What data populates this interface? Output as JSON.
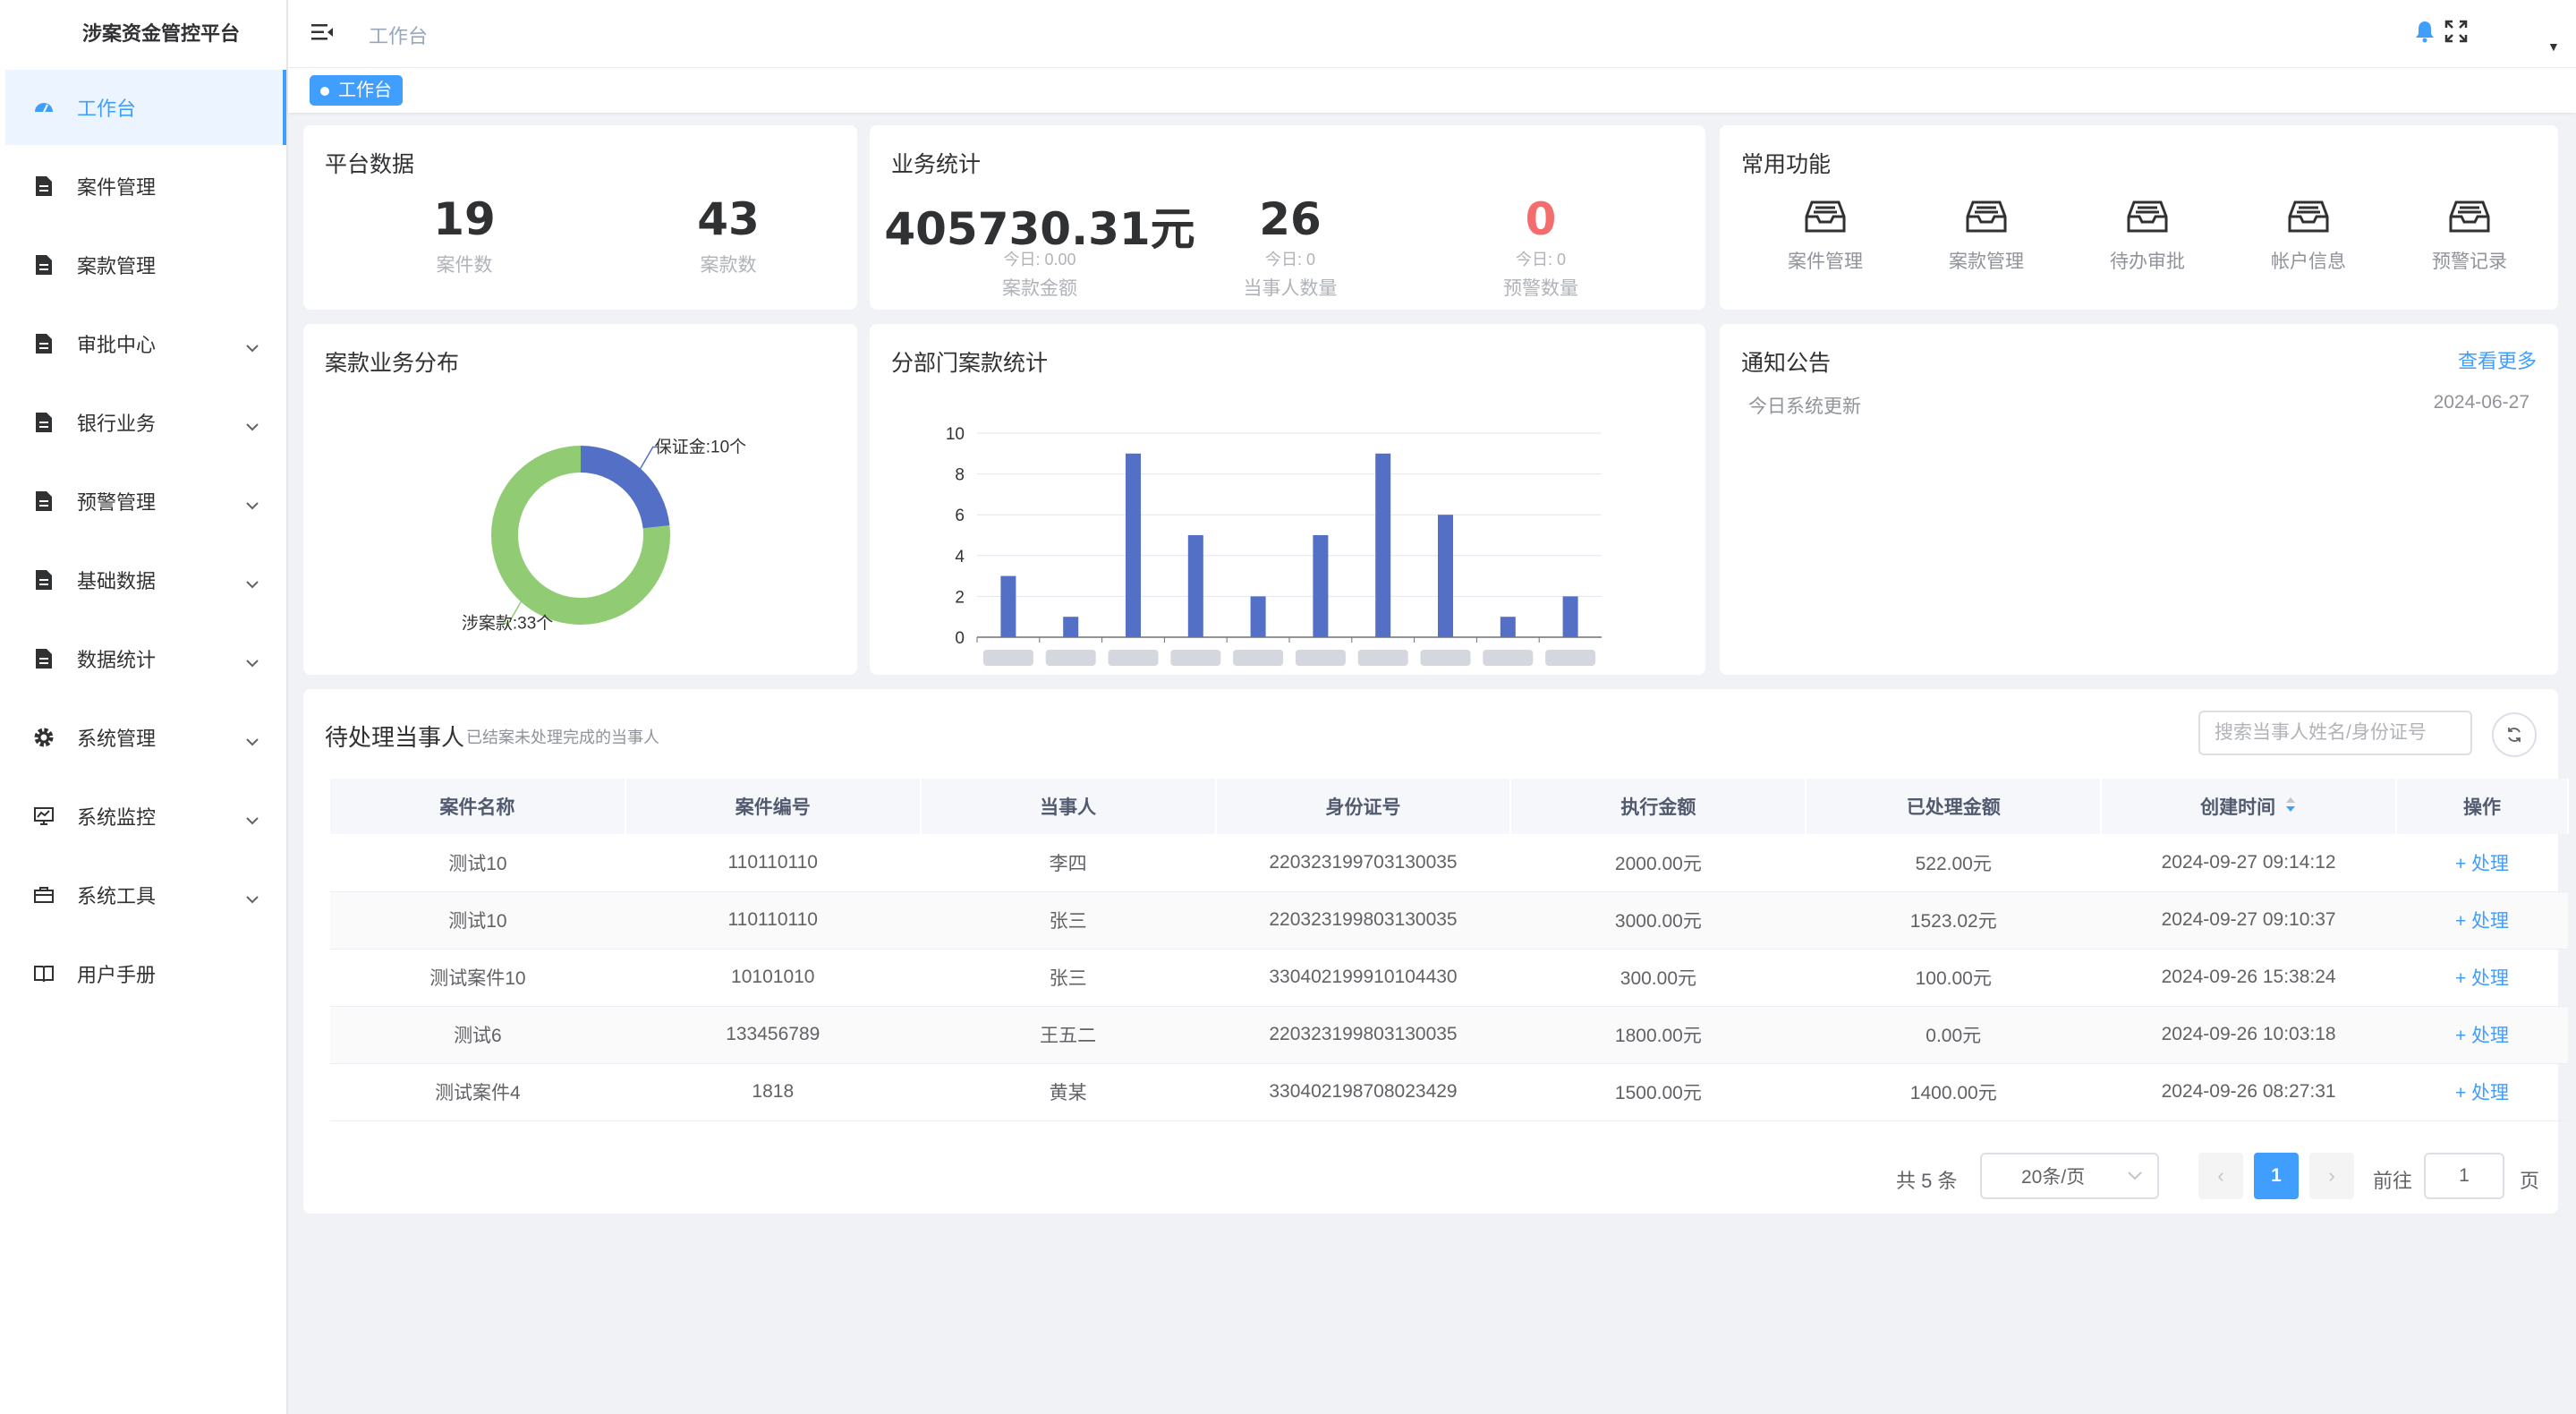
{
  "app": {
    "title": "涉案资金管控平台"
  },
  "sidebar": {
    "items": [
      {
        "label": "工作台",
        "icon": "dashboard-icon",
        "active": true,
        "expandable": false
      },
      {
        "label": "案件管理",
        "icon": "document-icon",
        "expandable": false
      },
      {
        "label": "案款管理",
        "icon": "document-icon",
        "expandable": false
      },
      {
        "label": "审批中心",
        "icon": "document-icon",
        "expandable": true
      },
      {
        "label": "银行业务",
        "icon": "document-icon",
        "expandable": true
      },
      {
        "label": "预警管理",
        "icon": "document-icon",
        "expandable": true
      },
      {
        "label": "基础数据",
        "icon": "document-icon",
        "expandable": true
      },
      {
        "label": "数据统计",
        "icon": "document-icon",
        "expandable": true
      },
      {
        "label": "系统管理",
        "icon": "gear-icon",
        "expandable": true
      },
      {
        "label": "系统监控",
        "icon": "monitor-icon",
        "expandable": true
      },
      {
        "label": "系统工具",
        "icon": "toolbox-icon",
        "expandable": true
      },
      {
        "label": "用户手册",
        "icon": "book-icon",
        "expandable": false
      }
    ]
  },
  "header": {
    "breadcrumb": "工作台"
  },
  "tags": {
    "active": "工作台"
  },
  "platform": {
    "title": "平台数据",
    "stats": [
      {
        "value": "19",
        "label": "案件数"
      },
      {
        "value": "43",
        "label": "案款数"
      }
    ]
  },
  "business": {
    "title": "业务统计",
    "stats": [
      {
        "value": "405730.31元",
        "sub": "今日: 0.00",
        "label": "案款金额",
        "color": "#303133"
      },
      {
        "value": "26",
        "sub": "今日: 0",
        "label": "当事人数量",
        "color": "#303133"
      },
      {
        "value": "0",
        "sub": "今日: 0",
        "label": "预警数量",
        "color": "#f56c6c"
      }
    ]
  },
  "quick": {
    "title": "常用功能",
    "items": [
      {
        "label": "案件管理",
        "icon": "inbox-icon"
      },
      {
        "label": "案款管理",
        "icon": "inbox-icon"
      },
      {
        "label": "待办审批",
        "icon": "inbox-icon"
      },
      {
        "label": "帐户信息",
        "icon": "inbox-icon"
      },
      {
        "label": "预警记录",
        "icon": "inbox-icon"
      }
    ]
  },
  "distribution": {
    "title": "案款业务分布",
    "chart_data": {
      "type": "pie",
      "slices": [
        {
          "label": "保证金:10个",
          "value": 10,
          "color": "#5470c6"
        },
        {
          "label": "涉案款:33个",
          "value": 33,
          "color": "#91cc75"
        }
      ]
    }
  },
  "department": {
    "title": "分部门案款统计",
    "chart_data": {
      "type": "bar",
      "categories": [
        "",
        "",
        "",
        "",
        "",
        "",
        "",
        "",
        "",
        ""
      ],
      "values": [
        3,
        1,
        9,
        5,
        2,
        5,
        9,
        6,
        1,
        2
      ],
      "ylim": [
        0,
        10
      ],
      "yticks": [
        0,
        2,
        4,
        6,
        8,
        10
      ],
      "color": "#5470c6",
      "grid": true
    }
  },
  "notice": {
    "title": "通知公告",
    "more": "查看更多",
    "items": [
      {
        "title": "今日系统更新",
        "date": "2024-06-27"
      }
    ]
  },
  "pending": {
    "title": "待处理当事人",
    "subtitle": "已结案未处理完成的当事人",
    "search_placeholder": "搜索当事人姓名/身份证号",
    "columns": [
      "案件名称",
      "案件编号",
      "当事人",
      "身份证号",
      "执行金额",
      "已处理金额",
      "创建时间",
      "操作"
    ],
    "rows": [
      [
        "测试10",
        "110110110",
        "李四",
        "220323199703130035",
        "2000.00元",
        "522.00元",
        "2024-09-27 09:14:12"
      ],
      [
        "测试10",
        "110110110",
        "张三",
        "220323199803130035",
        "3000.00元",
        "1523.02元",
        "2024-09-27 09:10:37"
      ],
      [
        "测试案件10",
        "10101010",
        "张三",
        "330402199910104430",
        "300.00元",
        "100.00元",
        "2024-09-26 15:38:24"
      ],
      [
        "测试6",
        "133456789",
        "王五二",
        "220323199803130035",
        "1800.00元",
        "0.00元",
        "2024-09-26 10:03:18"
      ],
      [
        "测试案件4",
        "1818",
        "黄某",
        "330402198708023429",
        "1500.00元",
        "1400.00元",
        "2024-09-26 08:27:31"
      ]
    ],
    "action_label": "+ 处理",
    "pagination": {
      "total_text": "共 5 条",
      "page_size": "20条/页",
      "current_page": "1",
      "goto_label": "前往",
      "goto_value": "1",
      "page_suffix": "页"
    }
  }
}
